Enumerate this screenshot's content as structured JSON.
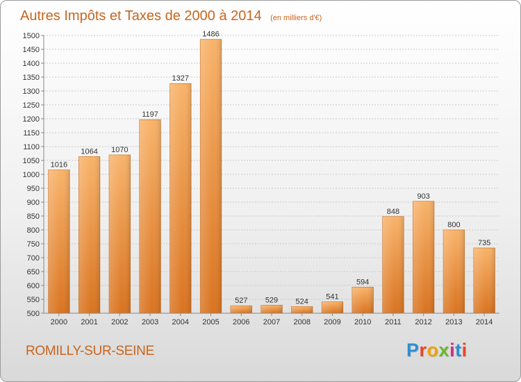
{
  "chart_data": {
    "type": "bar",
    "title": "Autres Impôts et Taxes de 2000 à 2014",
    "unit": "(en milliers d'€)",
    "categories": [
      "2000",
      "2001",
      "2002",
      "2003",
      "2004",
      "2005",
      "2006",
      "2007",
      "2008",
      "2009",
      "2010",
      "2011",
      "2012",
      "2013",
      "2014"
    ],
    "values": [
      1016,
      1064,
      1070,
      1197,
      1327,
      1486,
      527,
      529,
      524,
      541,
      594,
      848,
      903,
      800,
      735
    ],
    "ylim": [
      500,
      1500
    ],
    "ytick_step": 50,
    "grid": true,
    "bar_color": "#f0923a",
    "bar_color_light": "#f8b36a",
    "bar_color_dark": "#d9731f",
    "title_color": "#c8651e"
  },
  "footer": {
    "commune": "ROMILLY-SUR-SEINE",
    "logo_letters": [
      "P",
      "r",
      "o",
      "x",
      "i",
      "t",
      "i"
    ],
    "logo_colors": [
      "#2a8fd6",
      "#e8452b",
      "#f2a100",
      "#6bb52e",
      "#d62b7a",
      "#2a8fd6",
      "#e8452b"
    ]
  }
}
